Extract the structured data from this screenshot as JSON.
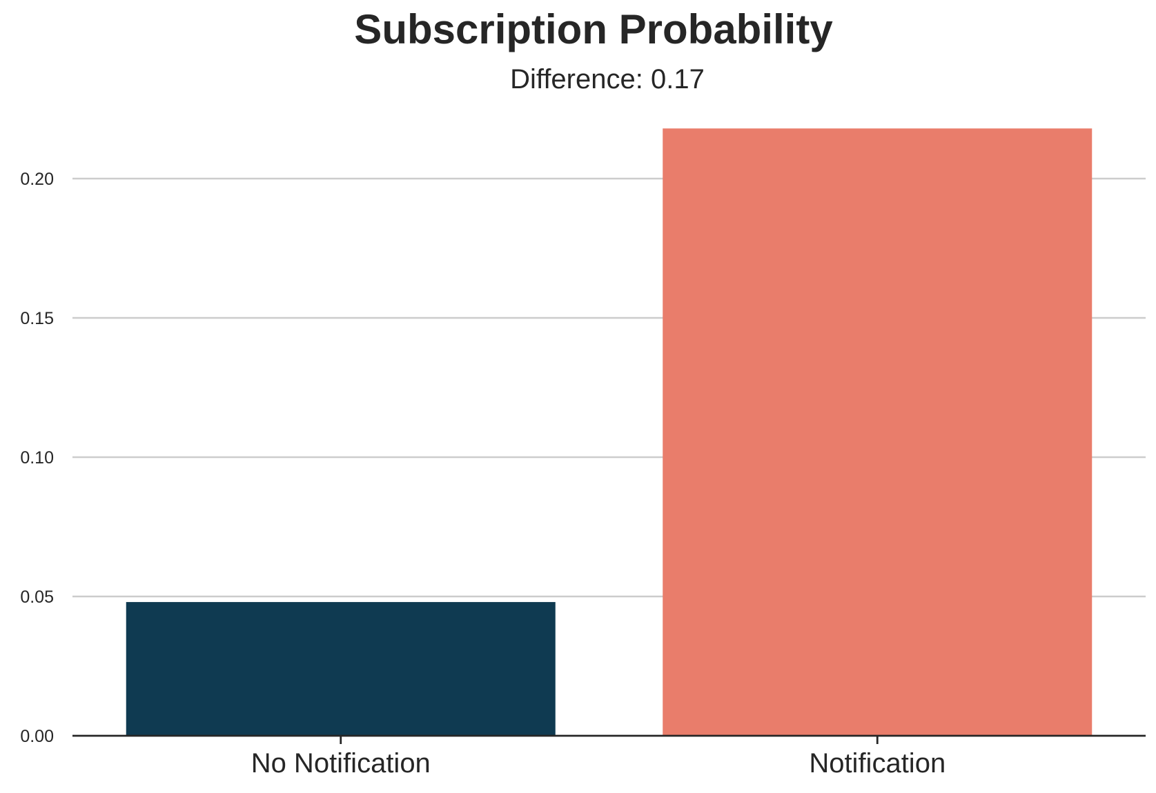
{
  "chart_data": {
    "type": "bar",
    "title": "Subscription Probability",
    "subtitle": "Difference: 0.17",
    "xlabel": "",
    "ylabel": "",
    "categories": [
      "No Notification",
      "Notification"
    ],
    "values": [
      0.048,
      0.218
    ],
    "colors": [
      "#0f3a51",
      "#e97d6b"
    ],
    "ylim": [
      0,
      0.23
    ],
    "yticks": [
      0.0,
      0.05,
      0.1,
      0.15,
      0.2
    ],
    "ytick_labels": [
      "0.00",
      "0.05",
      "0.10",
      "0.15",
      "0.20"
    ],
    "grid": "horizontal",
    "legend": "none"
  }
}
